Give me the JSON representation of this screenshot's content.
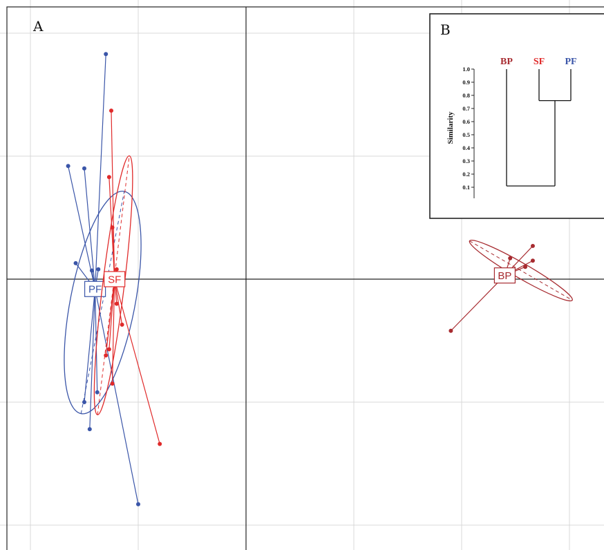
{
  "colors": {
    "PF": "#3a55a8",
    "SF": "#e02a2a",
    "BP": "#a72b30",
    "grid": "#d8d8d8",
    "axis": "#222222"
  },
  "chart_data": [
    {
      "type": "scatter",
      "panel": "A",
      "title": "",
      "xlabel": "",
      "ylabel": "",
      "xlim": [
        -2.2,
        3.0
      ],
      "ylim": [
        -2.2,
        2.2
      ],
      "grid": true,
      "groups": [
        {
          "name": "PF",
          "centroid": [
            -1.4,
            -0.08
          ],
          "points": [
            [
              -1.3,
              1.83
            ],
            [
              -1.5,
              0.9
            ],
            [
              -1.65,
              0.92
            ],
            [
              -1.58,
              0.13
            ],
            [
              -1.43,
              0.07
            ],
            [
              -1.37,
              0.08
            ],
            [
              -1.5,
              -1.0
            ],
            [
              -1.38,
              -0.92
            ],
            [
              -1.45,
              -1.22
            ],
            [
              -1.0,
              -1.83
            ]
          ],
          "ellipse": {
            "center": [
              -1.33,
              -0.19
            ],
            "rx": 1.05,
            "ry": 0.3,
            "angle": 79
          }
        },
        {
          "name": "SF",
          "centroid": [
            -1.22,
            0.0
          ],
          "points": [
            [
              -1.25,
              1.37
            ],
            [
              -1.27,
              0.83
            ],
            [
              -1.24,
              0.42
            ],
            [
              -1.2,
              0.08
            ],
            [
              -1.2,
              0.0
            ],
            [
              -1.2,
              -0.2
            ],
            [
              -1.15,
              -0.37
            ],
            [
              -1.27,
              -0.57
            ],
            [
              -1.3,
              -0.62
            ],
            [
              -1.24,
              -0.85
            ],
            [
              -0.8,
              -1.34
            ]
          ],
          "ellipse": {
            "center": [
              -1.23,
              -0.05
            ],
            "rx": 1.21,
            "ry": 0.1,
            "angle": 83
          }
        },
        {
          "name": "BP",
          "centroid": [
            2.4,
            0.03
          ],
          "points": [
            [
              1.9,
              -0.42
            ],
            [
              2.45,
              0.17
            ],
            [
              2.66,
              0.27
            ],
            [
              2.66,
              0.15
            ],
            [
              2.59,
              0.1
            ]
          ],
          "ellipse": {
            "center": [
              2.55,
              0.07
            ],
            "rx": 0.55,
            "ry": 0.07,
            "angle": -30
          }
        }
      ]
    },
    {
      "type": "dendrogram",
      "panel": "B",
      "ylabel": "Similarity",
      "ylim": [
        0.1,
        1.0
      ],
      "ticks": [
        "1.0",
        "0.9",
        "0.8",
        "0.7",
        "0.6",
        "0.5",
        "0.4",
        "0.3",
        "0.2",
        "0.1"
      ],
      "leaves": [
        "BP",
        "SF",
        "PF"
      ],
      "merges": [
        {
          "left": "SF",
          "right": "PF",
          "height": 0.76
        },
        {
          "left": "BP",
          "right": "SF+PF",
          "height": 0.11
        }
      ]
    }
  ]
}
